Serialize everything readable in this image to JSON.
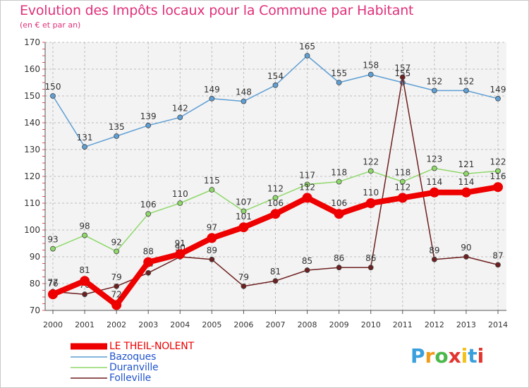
{
  "header": {
    "title": "Evolution des Impôts locaux pour la Commune par Habitant",
    "subtitle": "(en € et par an)"
  },
  "chart_data": {
    "type": "line",
    "title": "Evolution des Impôts locaux pour la Commune par Habitant",
    "subtitle": "(en € et par an)",
    "xlabel": "",
    "ylabel": "",
    "categories": [
      "2000",
      "2001",
      "2002",
      "2003",
      "2004",
      "2005",
      "2006",
      "2007",
      "2008",
      "2009",
      "2010",
      "2011",
      "2012",
      "2013",
      "2014"
    ],
    "ylim": [
      70,
      170
    ],
    "yticks": [
      70,
      80,
      90,
      100,
      110,
      120,
      130,
      140,
      150,
      160,
      170
    ],
    "grid": true,
    "series": [
      {
        "name": "LE THEIL-NOLENT",
        "color": "#ee0000",
        "values": [
          76,
          81,
          72,
          88,
          91,
          97,
          101,
          106,
          112,
          106,
          110,
          112,
          114,
          114,
          116
        ]
      },
      {
        "name": "Bazoques",
        "color": "#5f9fd4",
        "values": [
          150,
          131,
          135,
          139,
          142,
          149,
          148,
          154,
          165,
          155,
          158,
          155,
          152,
          152,
          149
        ]
      },
      {
        "name": "Duranville",
        "color": "#8fd86a",
        "values": [
          93,
          98,
          92,
          106,
          110,
          115,
          107,
          112,
          117,
          118,
          122,
          118,
          123,
          121,
          122
        ]
      },
      {
        "name": "Folleville",
        "color": "#6e1f1f",
        "values": [
          77,
          76,
          79,
          84,
          90,
          89,
          79,
          81,
          85,
          86,
          86,
          157,
          89,
          90,
          87
        ]
      }
    ]
  },
  "legend": {
    "items": [
      {
        "label": "LE THEIL-NOLENT",
        "color": "#ee0000"
      },
      {
        "label": "Bazoques",
        "color": "#5f9fd4"
      },
      {
        "label": "Duranville",
        "color": "#8fd86a"
      },
      {
        "label": "Folleville",
        "color": "#6e1f1f"
      }
    ]
  },
  "logo": {
    "letters": [
      "P",
      "r",
      "o",
      "x",
      "i",
      "t",
      "i"
    ],
    "colors": [
      "#3aa0dd",
      "#f29a1a",
      "#4bb84b",
      "#e2352f",
      "#f2c21a",
      "#3aa0dd",
      "#e2352f"
    ]
  }
}
